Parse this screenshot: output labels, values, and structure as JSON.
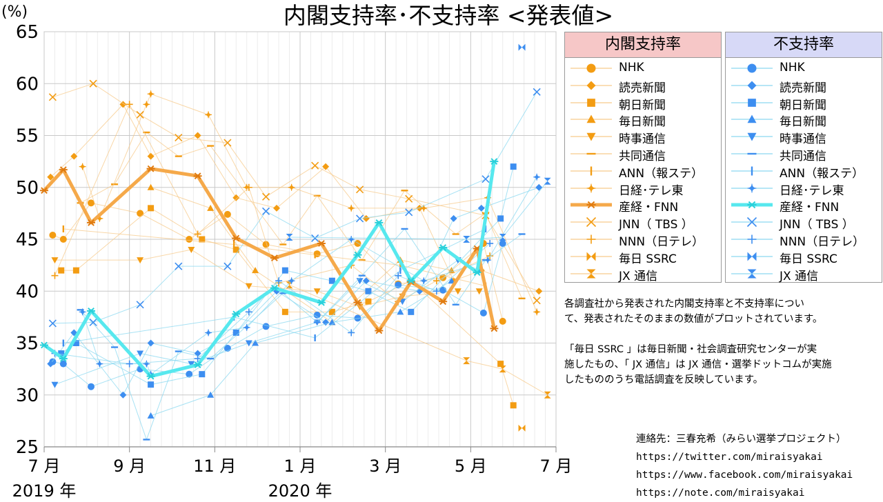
{
  "title": "内閣支持率･不支持率 <発表値>",
  "y_unit": "(%)",
  "colors": {
    "support": "#f39c12",
    "support_light": "#f7c98a",
    "oppose": "#3d8ef0",
    "oppose_light": "#8ad8f0",
    "support_head_bg": "#f6c7c7",
    "oppose_head_bg": "#d7d9f7"
  },
  "legend": {
    "support_title": "内閣支持率",
    "oppose_title": "不支持率",
    "items": [
      {
        "label": "NHK",
        "marker": "circle"
      },
      {
        "label": "読売新聞",
        "marker": "diamond"
      },
      {
        "label": "朝日新聞",
        "marker": "square"
      },
      {
        "label": "毎日新聞",
        "marker": "triangle-up"
      },
      {
        "label": "時事通信",
        "marker": "triangle-down"
      },
      {
        "label": "共同通信",
        "marker": "hline"
      },
      {
        "label": "ANN（報ステ）",
        "marker": "vline"
      },
      {
        "label": "日経･テレ東",
        "marker": "star"
      },
      {
        "label": "産経・FNN",
        "marker": "asterisk"
      },
      {
        "label": "JNN（ TBS ）",
        "marker": "x"
      },
      {
        "label": "NNN（日テレ）",
        "marker": "plus"
      },
      {
        "label": "毎日 SSRC",
        "marker": "bowtie"
      },
      {
        "label": "JX 通信",
        "marker": "hourglass"
      }
    ]
  },
  "note1": [
    "各調査社から発表された内閣支持率と不支持率につい",
    "て、発表されたそのままの数値がプロットされています。"
  ],
  "note2": [
    "「毎日 SSRC 」は毎日新聞・社会調査研究センターが実",
    "施したもの、「 JX 通信」は JX 通信・選挙ドットコムが実施",
    "したもののうち電話調査を反映しています。"
  ],
  "contact": {
    "label": "連絡先：三春充希（みらい選挙プロジェクト）",
    "twitter": "https://twitter.com/miraisyakai",
    "facebook": "https://www.facebook.com/miraisyakai",
    "note": "https://note.com/miraisyakai"
  },
  "chart_data": {
    "type": "line",
    "x_unit": "month (2019-07 = 0)",
    "xlim": [
      0,
      12
    ],
    "ylim": [
      25,
      65
    ],
    "yticks": [
      25,
      30,
      35,
      40,
      45,
      50,
      55,
      60,
      65
    ],
    "xticks": [
      {
        "x": 0,
        "label": "7 月",
        "sub": "2019 年"
      },
      {
        "x": 2,
        "label": "9 月",
        "sub": ""
      },
      {
        "x": 4,
        "label": "11 月",
        "sub": ""
      },
      {
        "x": 6,
        "label": "1 月",
        "sub": "2020 年"
      },
      {
        "x": 8,
        "label": "3 月",
        "sub": ""
      },
      {
        "x": 10,
        "label": "5 月",
        "sub": ""
      },
      {
        "x": 12,
        "label": "7 月",
        "sub": ""
      }
    ],
    "grid": true,
    "support": [
      {
        "name": "NHK",
        "marker": "circle",
        "points": [
          [
            0.2,
            45.4
          ],
          [
            0.45,
            45.0
          ],
          [
            1.1,
            48.5
          ],
          [
            2.25,
            47.5
          ],
          [
            3.4,
            45.0
          ],
          [
            4.3,
            47.4
          ],
          [
            5.2,
            44.5
          ],
          [
            6.4,
            43.6
          ],
          [
            7.35,
            44.6
          ],
          [
            8.3,
            40.7
          ],
          [
            9.35,
            41.3
          ],
          [
            10.3,
            44.6
          ],
          [
            10.75,
            37.1
          ]
        ]
      },
      {
        "name": "読売新聞",
        "marker": "diamond",
        "points": [
          [
            0.15,
            51.0
          ],
          [
            0.7,
            53.0
          ],
          [
            1.85,
            58.0
          ],
          [
            2.5,
            53.0
          ],
          [
            3.6,
            55.0
          ],
          [
            4.5,
            49.0
          ],
          [
            5.45,
            48.0
          ],
          [
            6.6,
            52.0
          ],
          [
            7.55,
            47.0
          ],
          [
            8.8,
            48.0
          ],
          [
            9.6,
            41.0
          ],
          [
            10.25,
            42.0
          ],
          [
            11.6,
            40.0
          ]
        ]
      },
      {
        "name": "朝日新聞",
        "marker": "square",
        "points": [
          [
            0.4,
            42.0
          ],
          [
            0.75,
            42.0
          ],
          [
            2.5,
            48.0
          ],
          [
            3.7,
            45.0
          ],
          [
            4.5,
            44.0
          ],
          [
            5.65,
            38.0
          ],
          [
            6.75,
            38.0
          ],
          [
            7.6,
            39.0
          ],
          [
            8.6,
            41.0
          ],
          [
            10.7,
            33.0
          ],
          [
            11.0,
            29.0
          ]
        ]
      },
      {
        "name": "毎日新聞",
        "marker": "triangle-up",
        "points": [
          [
            2.5,
            50.0
          ],
          [
            3.9,
            48.0
          ],
          [
            4.95,
            42.0
          ],
          [
            6.75,
            37.0
          ],
          [
            8.35,
            43.0
          ],
          [
            9.55,
            42.0
          ]
        ]
      },
      {
        "name": "時事通信",
        "marker": "triangle-down",
        "points": [
          [
            0.25,
            43.0
          ],
          [
            2.25,
            43.0
          ],
          [
            3.45,
            44.0
          ],
          [
            4.8,
            40.5
          ],
          [
            6.4,
            40.0
          ],
          [
            7.4,
            38.5
          ],
          [
            8.4,
            39.5
          ],
          [
            9.7,
            40.0
          ],
          [
            10.2,
            40.0
          ]
        ]
      },
      {
        "name": "共同通信",
        "marker": "hline",
        "points": [
          [
            0.85,
            48.5
          ],
          [
            1.65,
            50.3
          ],
          [
            2.4,
            55.3
          ],
          [
            3.15,
            53.0
          ],
          [
            3.9,
            54.0
          ],
          [
            5.6,
            44.5
          ],
          [
            6.4,
            49.2
          ],
          [
            7.45,
            43.0
          ],
          [
            8.45,
            49.7
          ],
          [
            9.65,
            45.5
          ],
          [
            10.35,
            47.5
          ],
          [
            11.2,
            39.3
          ]
        ]
      },
      {
        "name": "ANN（報ステ）",
        "marker": "vline",
        "points": [
          [
            0.45,
            46.0
          ],
          [
            4.45,
            44.5
          ],
          [
            6.35,
            43.5
          ],
          [
            8.35,
            42.5
          ],
          [
            10.35,
            40.5
          ]
        ]
      },
      {
        "name": "日経･テレ東",
        "marker": "star",
        "points": [
          [
            0.9,
            52.0
          ],
          [
            1.3,
            47.0
          ],
          [
            2.4,
            58.0
          ],
          [
            2.5,
            59.0
          ],
          [
            3.85,
            57.0
          ],
          [
            4.75,
            50.0
          ],
          [
            5.8,
            50.0
          ],
          [
            7.2,
            48.0
          ],
          [
            8.9,
            48.0
          ],
          [
            10.4,
            49.0
          ],
          [
            11.55,
            38.0
          ]
        ]
      },
      {
        "name": "JNN（ TBS ）",
        "marker": "x",
        "points": [
          [
            0.2,
            58.7
          ],
          [
            1.15,
            60.0
          ],
          [
            2.25,
            57.0
          ],
          [
            3.15,
            54.8
          ],
          [
            4.3,
            54.3
          ],
          [
            5.2,
            49.1
          ],
          [
            6.35,
            52.1
          ],
          [
            7.4,
            49.8
          ],
          [
            8.55,
            48.9
          ],
          [
            10.35,
            47.3
          ],
          [
            11.55,
            39.1
          ]
        ]
      },
      {
        "name": "NNN（日テレ）",
        "marker": "plus",
        "points": [
          [
            0.25,
            41.5
          ],
          [
            2.0,
            58.0
          ],
          [
            3.6,
            45.5
          ],
          [
            4.8,
            50.0
          ],
          [
            5.5,
            40.8
          ],
          [
            7.2,
            42.5
          ],
          [
            8.3,
            39.0
          ],
          [
            9.2,
            41.0
          ],
          [
            10.45,
            43.4
          ]
        ]
      },
      {
        "name": "毎日 SSRC",
        "marker": "bowtie",
        "points": [
          [
            11.2,
            26.8
          ]
        ]
      },
      {
        "name": "JX 通信",
        "marker": "hourglass",
        "points": [
          [
            5.75,
            40.6
          ],
          [
            9.9,
            33.3
          ],
          [
            10.75,
            32.5
          ],
          [
            11.8,
            30.0
          ]
        ]
      },
      {
        "name": "産経・FNN",
        "marker": "asterisk",
        "highlight": true,
        "points": [
          [
            0,
            49.7
          ],
          [
            0.45,
            51.7
          ],
          [
            1.1,
            46.6
          ],
          [
            2.5,
            51.8
          ],
          [
            3.6,
            51.1
          ],
          [
            4.5,
            45.1
          ],
          [
            5.4,
            43.2
          ],
          [
            6.5,
            44.6
          ],
          [
            7.35,
            38.9
          ],
          [
            7.85,
            36.2
          ],
          [
            8.6,
            40.9
          ],
          [
            9.35,
            39.0
          ],
          [
            10.15,
            44.1
          ],
          [
            10.55,
            36.4
          ]
        ]
      }
    ],
    "oppose": [
      {
        "name": "NHK",
        "marker": "circle",
        "points": [
          [
            0.2,
            33.2
          ],
          [
            0.45,
            33.0
          ],
          [
            1.1,
            30.8
          ],
          [
            2.25,
            32.5
          ],
          [
            3.4,
            32.0
          ],
          [
            4.3,
            34.5
          ],
          [
            5.2,
            36.6
          ],
          [
            6.4,
            37.7
          ],
          [
            7.35,
            37.4
          ],
          [
            8.3,
            40.6
          ],
          [
            9.35,
            40.1
          ],
          [
            10.3,
            37.9
          ],
          [
            10.75,
            44.6
          ]
        ]
      },
      {
        "name": "読売新聞",
        "marker": "diamond",
        "points": [
          [
            0.15,
            33.0
          ],
          [
            0.7,
            36.0
          ],
          [
            1.85,
            30.0
          ],
          [
            2.5,
            35.0
          ],
          [
            3.6,
            34.0
          ],
          [
            4.5,
            36.0
          ],
          [
            5.45,
            40.0
          ],
          [
            6.6,
            37.0
          ],
          [
            7.55,
            41.0
          ],
          [
            8.8,
            40.0
          ],
          [
            9.6,
            47.0
          ],
          [
            10.25,
            48.0
          ],
          [
            11.6,
            50.0
          ]
        ]
      },
      {
        "name": "朝日新聞",
        "marker": "square",
        "points": [
          [
            0.4,
            34.0
          ],
          [
            0.75,
            35.0
          ],
          [
            2.5,
            31.0
          ],
          [
            3.7,
            32.0
          ],
          [
            4.5,
            36.0
          ],
          [
            5.65,
            42.0
          ],
          [
            6.75,
            41.0
          ],
          [
            7.6,
            40.0
          ],
          [
            8.6,
            38.0
          ],
          [
            10.7,
            47.0
          ],
          [
            11.0,
            52.0
          ]
        ]
      },
      {
        "name": "毎日新聞",
        "marker": "triangle-up",
        "points": [
          [
            2.5,
            28.0
          ],
          [
            3.9,
            30.0
          ],
          [
            4.95,
            35.0
          ],
          [
            6.75,
            37.0
          ],
          [
            8.35,
            38.0
          ],
          [
            9.55,
            41.0
          ]
        ]
      },
      {
        "name": "時事通信",
        "marker": "triangle-down",
        "points": [
          [
            0.25,
            31.0
          ],
          [
            2.25,
            34.0
          ],
          [
            3.45,
            33.0
          ],
          [
            4.8,
            35.0
          ],
          [
            6.4,
            37.0
          ],
          [
            7.4,
            41.0
          ],
          [
            8.4,
            39.0
          ],
          [
            9.7,
            43.0
          ],
          [
            10.2,
            42.0
          ]
        ]
      },
      {
        "name": "共同通信",
        "marker": "hline",
        "points": [
          [
            0.85,
            38.2
          ],
          [
            1.65,
            34.6
          ],
          [
            2.4,
            25.7
          ],
          [
            3.15,
            34.2
          ],
          [
            3.9,
            33.5
          ],
          [
            5.6,
            39.8
          ],
          [
            6.4,
            37.0
          ],
          [
            7.45,
            41.5
          ],
          [
            8.45,
            46.0
          ],
          [
            9.65,
            38.7
          ],
          [
            10.35,
            43.0
          ],
          [
            11.2,
            45.5
          ]
        ]
      },
      {
        "name": "ANN（報ステ）",
        "marker": "vline",
        "points": [
          [
            0.45,
            35.0
          ],
          [
            4.45,
            37.5
          ],
          [
            6.35,
            35.5
          ],
          [
            8.35,
            42.0
          ],
          [
            10.35,
            46.0
          ]
        ]
      },
      {
        "name": "日経･テレ東",
        "marker": "star",
        "points": [
          [
            0.9,
            38.0
          ],
          [
            1.3,
            33.0
          ],
          [
            2.4,
            33.0
          ],
          [
            2.5,
            32.0
          ],
          [
            3.85,
            36.0
          ],
          [
            4.75,
            36.5
          ],
          [
            5.8,
            41.0
          ],
          [
            7.2,
            45.0
          ],
          [
            8.9,
            41.0
          ],
          [
            10.4,
            43.0
          ],
          [
            11.55,
            51.0
          ]
        ]
      },
      {
        "name": "JNN（ TBS ）",
        "marker": "x",
        "points": [
          [
            0.2,
            36.9
          ],
          [
            1.15,
            37.0
          ],
          [
            2.25,
            38.7
          ],
          [
            3.15,
            42.4
          ],
          [
            4.3,
            42.4
          ],
          [
            5.2,
            47.7
          ],
          [
            6.35,
            45.1
          ],
          [
            7.4,
            47.0
          ],
          [
            8.55,
            47.6
          ],
          [
            10.35,
            50.8
          ],
          [
            11.55,
            59.2
          ]
        ]
      },
      {
        "name": "NNN（日テレ）",
        "marker": "plus",
        "points": [
          [
            0.25,
            34.0
          ],
          [
            2.0,
            33.0
          ],
          [
            3.6,
            33.5
          ],
          [
            4.8,
            38.0
          ],
          [
            5.5,
            41.0
          ],
          [
            7.2,
            36.0
          ],
          [
            8.3,
            41.5
          ],
          [
            9.2,
            40.0
          ],
          [
            10.45,
            44.6
          ]
        ]
      },
      {
        "name": "毎日 SSRC",
        "marker": "bowtie",
        "points": [
          [
            11.2,
            63.5
          ]
        ]
      },
      {
        "name": "JX 通信",
        "marker": "hourglass",
        "points": [
          [
            5.75,
            45.2
          ],
          [
            9.9,
            45.0
          ],
          [
            10.75,
            45.2
          ],
          [
            11.8,
            50.6
          ]
        ]
      },
      {
        "name": "産経・FNN",
        "marker": "asterisk",
        "highlight": true,
        "points": [
          [
            0,
            34.8
          ],
          [
            0.45,
            33.5
          ],
          [
            1.1,
            38.1
          ],
          [
            2.5,
            31.8
          ],
          [
            3.6,
            32.9
          ],
          [
            4.5,
            37.8
          ],
          [
            5.4,
            40.3
          ],
          [
            6.5,
            38.9
          ],
          [
            7.35,
            43.5
          ],
          [
            7.85,
            46.6
          ],
          [
            8.6,
            41.0
          ],
          [
            9.35,
            44.2
          ],
          [
            10.15,
            41.8
          ],
          [
            10.55,
            52.5
          ]
        ]
      }
    ]
  }
}
